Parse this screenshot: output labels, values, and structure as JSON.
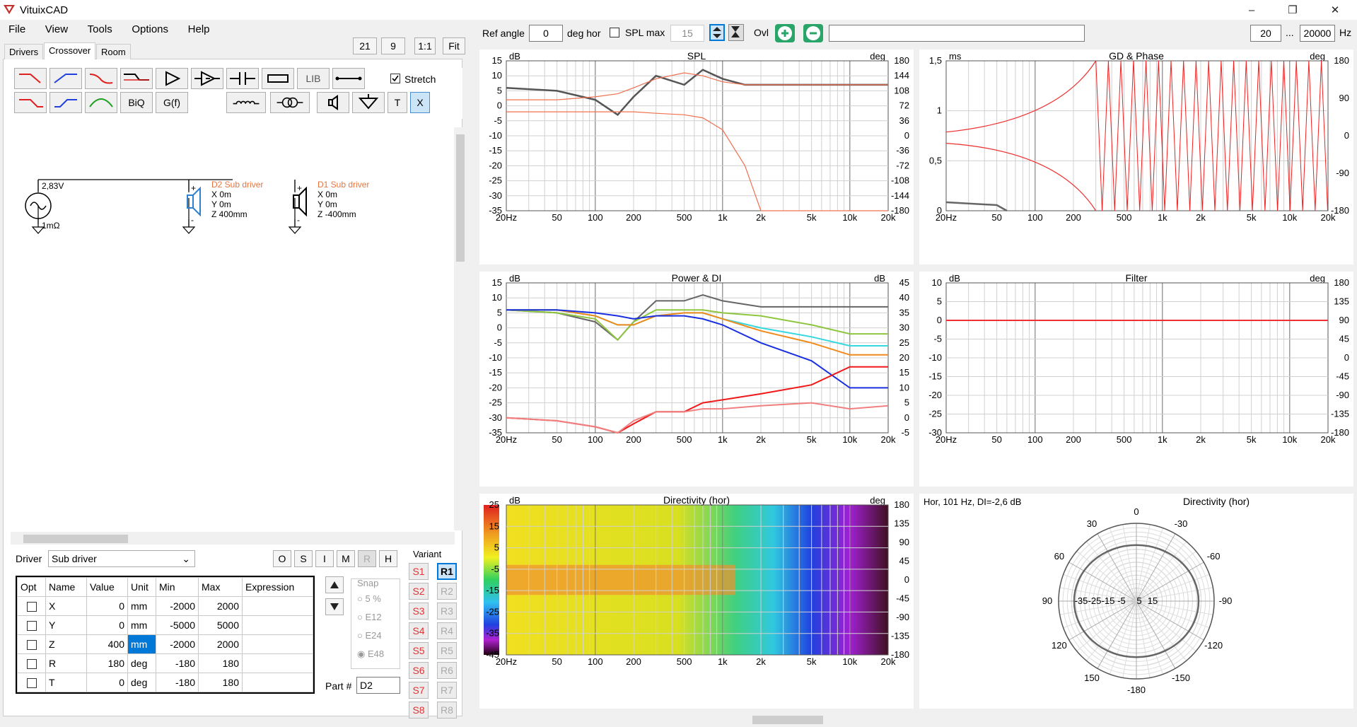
{
  "app": {
    "title": "VituixCAD",
    "min": "–",
    "max": "❐",
    "close": "✕"
  },
  "menu": [
    "File",
    "View",
    "Tools",
    "Options",
    "Help"
  ],
  "left_toolbar": {
    "zoom_a": "21",
    "zoom_b": "9",
    "one_to_one": "1:1",
    "fit": "Fit"
  },
  "tabs": [
    "Drivers",
    "Crossover",
    "Room"
  ],
  "tools": {
    "biq": "BiQ",
    "gf": "G(f)",
    "lib": "LIB",
    "t": "T",
    "x": "X",
    "stretch": "Stretch"
  },
  "schematic": {
    "voltage": "2,83V",
    "impedance": "1mΩ",
    "d2": {
      "name": "D2 Sub driver",
      "x": "X 0m",
      "y": "Y 0m",
      "z": "Z 400mm"
    },
    "d1": {
      "name": "D1 Sub driver",
      "x": "X 0m",
      "y": "Y 0m",
      "z": "Z -400mm"
    }
  },
  "driver_panel": {
    "label": "Driver",
    "selected": "Sub driver",
    "buttons": [
      "O",
      "S",
      "I",
      "M",
      "R",
      "H"
    ],
    "columns": [
      "Opt",
      "Name",
      "Value",
      "Unit",
      "Min",
      "Max",
      "Expression"
    ],
    "rows": [
      {
        "name": "X",
        "value": "0",
        "unit": "mm",
        "min": "-2000",
        "max": "2000"
      },
      {
        "name": "Y",
        "value": "0",
        "unit": "mm",
        "min": "-5000",
        "max": "5000"
      },
      {
        "name": "Z",
        "value": "400",
        "unit": "mm",
        "min": "-2000",
        "max": "2000"
      },
      {
        "name": "R",
        "value": "180",
        "unit": "deg",
        "min": "-180",
        "max": "180"
      },
      {
        "name": "T",
        "value": "0",
        "unit": "deg",
        "min": "-180",
        "max": "180"
      }
    ],
    "snap": {
      "title": "Snap",
      "options": [
        "5 %",
        "E12",
        "E24",
        "E48"
      ]
    },
    "part_label": "Part #",
    "part_value": "D2"
  },
  "variant": {
    "title": "Variant",
    "s": [
      "S1",
      "S2",
      "S3",
      "S4",
      "S5",
      "S6",
      "S7",
      "S8"
    ],
    "r": [
      "R1",
      "R2",
      "R3",
      "R4",
      "R5",
      "R6",
      "R7",
      "R8"
    ]
  },
  "top_toolbar": {
    "ref_angle_label": "Ref angle",
    "ref_angle": "0",
    "deg_hor": "deg hor",
    "spl_max": "SPL max",
    "spl_max_value": "15",
    "ovl": "Ovl",
    "f_min": "20",
    "dots": "...",
    "f_max": "20000",
    "hz": "Hz"
  },
  "freq_ticks": [
    "20Hz",
    "50",
    "100",
    "200",
    "500",
    "1k",
    "2k",
    "5k",
    "10k",
    "20k"
  ],
  "charts": {
    "spl": {
      "title": "SPL",
      "lunit": "dB",
      "runit": "deg",
      "lticks": [
        "15",
        "10",
        "5",
        "0",
        "-5",
        "-10",
        "-15",
        "-20",
        "-25",
        "-30",
        "-35"
      ],
      "rticks": [
        "180",
        "144",
        "108",
        "72",
        "36",
        "0",
        "-36",
        "-72",
        "-108",
        "-144",
        "-180"
      ]
    },
    "gd": {
      "title": "GD & Phase",
      "lunit": "ms",
      "runit": "deg",
      "lticks": [
        "1,5",
        "1",
        "0,5",
        "0"
      ],
      "rticks": [
        "180",
        "90",
        "0",
        "-90",
        "-180"
      ]
    },
    "power": {
      "title": "Power & DI",
      "lunit": "dB",
      "runit": "dB",
      "lticks": [
        "15",
        "10",
        "5",
        "0",
        "-5",
        "-10",
        "-15",
        "-20",
        "-25",
        "-30",
        "-35"
      ],
      "rticks": [
        "45",
        "40",
        "35",
        "30",
        "25",
        "20",
        "15",
        "10",
        "5",
        "0",
        "-5"
      ]
    },
    "filter": {
      "title": "Filter",
      "lunit": "dB",
      "runit": "deg",
      "lticks": [
        "10",
        "5",
        "0",
        "-5",
        "-10",
        "-15",
        "-20",
        "-25",
        "-30"
      ],
      "rticks": [
        "180",
        "135",
        "90",
        "45",
        "0",
        "-45",
        "-90",
        "-135",
        "-180"
      ]
    },
    "dirmap": {
      "title": "Directivity (hor)",
      "lunit": "dB",
      "runit": "deg",
      "lticks": [
        "25",
        "15",
        "5",
        "-5",
        "-15",
        "-25",
        "-35",
        "-45"
      ],
      "rticks": [
        "180",
        "135",
        "90",
        "45",
        "0",
        "-45",
        "-90",
        "-135",
        "-180"
      ]
    },
    "polar": {
      "title": "Directivity (hor)",
      "info": "Hor, 101 Hz, DI=-2,6 dB",
      "angles": [
        "0",
        "-30",
        "-60",
        "-90",
        "-120",
        "-150",
        "-180",
        "150",
        "120",
        "90",
        "60",
        "30"
      ],
      "rings": [
        "-35",
        "-25",
        "-15",
        "-5",
        "5",
        "15"
      ]
    }
  },
  "chart_data": [
    {
      "type": "line",
      "title": "SPL",
      "x": [
        20,
        50,
        100,
        150,
        200,
        300,
        500,
        700,
        1000,
        1500,
        2000,
        5000,
        10000,
        20000
      ],
      "series": [
        {
          "values": [
            6,
            5,
            2,
            -3,
            3,
            10,
            7,
            12,
            9,
            7,
            7,
            7,
            7,
            7
          ]
        },
        {
          "values": [
            2,
            2,
            3,
            4,
            6,
            9,
            11,
            10,
            8,
            7,
            7,
            7,
            7,
            7
          ]
        },
        {
          "values": [
            -2,
            -2,
            -2,
            -2,
            -2,
            -2.5,
            -3,
            -4,
            -8,
            -20,
            -35,
            -35,
            -35,
            -35
          ]
        }
      ]
    },
    {
      "type": "line",
      "title": "Power & DI",
      "x": [
        20,
        50,
        100,
        150,
        200,
        300,
        500,
        700,
        1000,
        2000,
        5000,
        10000,
        20000
      ],
      "series": [
        {
          "values": [
            6,
            5,
            2,
            -4,
            2,
            9,
            9,
            11,
            9,
            7,
            7,
            7,
            7
          ]
        },
        {
          "values": [
            6,
            5,
            3,
            -4,
            2,
            6,
            6,
            6,
            5,
            4,
            1,
            -2,
            -2
          ]
        },
        {
          "values": [
            6,
            6,
            4,
            1,
            1,
            4,
            5,
            5,
            3,
            0,
            -3,
            -6,
            -6
          ]
        },
        {
          "values": [
            6,
            6,
            4,
            1,
            1,
            4,
            5,
            5,
            3,
            -1,
            -5,
            -9,
            -9
          ]
        },
        {
          "values": [
            6,
            6,
            5,
            4,
            3,
            4,
            4,
            3,
            1,
            -5,
            -11,
            -20,
            -20
          ]
        },
        {
          "values": [
            -30,
            -31,
            -33,
            -35,
            -32,
            -28,
            -28,
            -25,
            -24,
            -22,
            -19,
            -13,
            -13
          ]
        },
        {
          "values": [
            -30,
            -31,
            -33,
            -35,
            -31,
            -28,
            -28,
            -27,
            -27,
            -26,
            -25,
            -27,
            -26
          ]
        }
      ]
    }
  ]
}
